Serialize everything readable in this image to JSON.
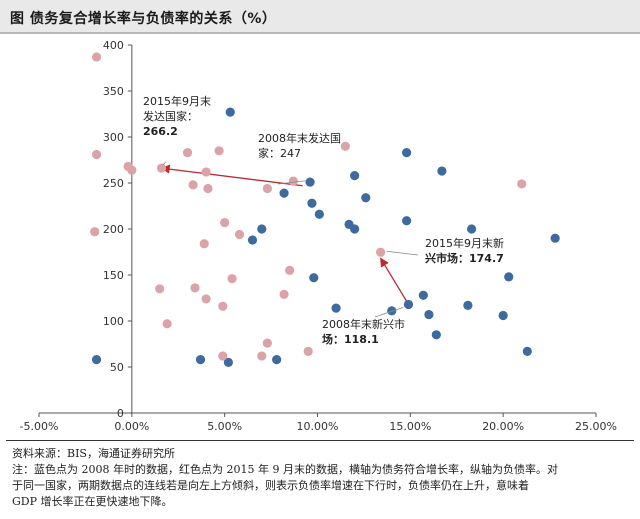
{
  "title": "图  债务复合增长率与负债率的关系（%）",
  "chart_data": {
    "type": "scatter",
    "xlim": [
      -5,
      25
    ],
    "ylim": [
      0,
      400
    ],
    "x_ticks": [
      -5,
      0,
      5,
      10,
      15,
      20,
      25
    ],
    "x_tick_labels": [
      "-5.00%",
      "0.00%",
      "5.00%",
      "10.00%",
      "15.00%",
      "20.00%",
      "25.00%"
    ],
    "y_ticks": [
      0,
      50,
      100,
      150,
      200,
      250,
      300,
      350,
      400
    ],
    "y_tick_labels": [
      "0",
      "50",
      "100",
      "150",
      "200",
      "250",
      "300",
      "350",
      "400"
    ],
    "grid": false,
    "series": [
      {
        "color": "#3e6a9e",
        "points": [
          [
            5.3,
            327
          ],
          [
            14.8,
            283
          ],
          [
            16.7,
            263
          ],
          [
            12.0,
            258
          ],
          [
            9.6,
            251
          ],
          [
            8.2,
            239
          ],
          [
            12.6,
            234
          ],
          [
            9.7,
            228
          ],
          [
            10.1,
            216
          ],
          [
            14.8,
            209
          ],
          [
            11.7,
            205
          ],
          [
            12.0,
            200
          ],
          [
            7.0,
            200
          ],
          [
            18.3,
            200
          ],
          [
            6.5,
            188
          ],
          [
            22.8,
            190
          ],
          [
            20.3,
            148
          ],
          [
            9.8,
            147
          ],
          [
            15.7,
            128
          ],
          [
            18.1,
            117
          ],
          [
            14.9,
            118
          ],
          [
            11.0,
            114
          ],
          [
            14.0,
            111
          ],
          [
            16.0,
            107
          ],
          [
            20.0,
            106
          ],
          [
            16.4,
            85
          ],
          [
            21.3,
            67
          ],
          [
            3.7,
            58
          ],
          [
            5.2,
            55
          ],
          [
            7.8,
            58
          ],
          [
            -1.9,
            58
          ]
        ]
      },
      {
        "color": "#d9a3a8",
        "points": [
          [
            -1.9,
            387
          ],
          [
            11.5,
            290
          ],
          [
            -1.9,
            281
          ],
          [
            3.0,
            283
          ],
          [
            4.7,
            285
          ],
          [
            -0.2,
            268
          ],
          [
            0.0,
            264
          ],
          [
            1.6,
            266.2
          ],
          [
            4.0,
            262
          ],
          [
            3.3,
            248
          ],
          [
            7.3,
            244
          ],
          [
            4.1,
            244
          ],
          [
            8.7,
            252
          ],
          [
            21.0,
            249
          ],
          [
            5.0,
            207
          ],
          [
            5.8,
            194
          ],
          [
            3.9,
            184
          ],
          [
            -2.0,
            197
          ],
          [
            13.4,
            174.7
          ],
          [
            8.5,
            155
          ],
          [
            5.4,
            146
          ],
          [
            1.5,
            135
          ],
          [
            3.4,
            136
          ],
          [
            8.2,
            129
          ],
          [
            4.0,
            124
          ],
          [
            4.9,
            116
          ],
          [
            1.9,
            97
          ],
          [
            7.3,
            76
          ],
          [
            4.9,
            62
          ],
          [
            7.0,
            62
          ],
          [
            9.5,
            67
          ]
        ]
      }
    ],
    "annotations": [
      {
        "lines": [
          "2015年9月末",
          "发达国家：",
          "266.2"
        ],
        "point": [
          1.6,
          266.2
        ]
      },
      {
        "lines": [
          "2008年末发达国",
          "家：247"
        ],
        "point": [
          9.2,
          247
        ]
      },
      {
        "lines": [
          "2015年9月末新",
          "兴市场：174.7"
        ],
        "point": [
          13.4,
          174.7
        ]
      },
      {
        "lines": [
          "2008年末新兴市",
          "场：118.1"
        ],
        "point": [
          14.9,
          118.1
        ]
      }
    ],
    "arrows": [
      {
        "from": [
          9.2,
          247
        ],
        "to": [
          1.6,
          266.2
        ],
        "color": "#c0282e"
      },
      {
        "from": [
          14.9,
          118.1
        ],
        "to": [
          13.4,
          174.7
        ],
        "color": "#c0282e"
      }
    ]
  },
  "notes": {
    "source": "资料来源：BIS，海通证券研究所",
    "line1": "注：蓝色点为 2008 年时的数据，红色点为 2015 年 9 月末的数据，横轴为债务符合增长率，纵轴为负债率。对",
    "line2": "于同一国家，两期数据点的连线若是向左上方倾斜，则表示负债率增速在下行时，负债率仍在上升，意味着",
    "line3": "GDP 增长率正在更快速地下降。"
  }
}
